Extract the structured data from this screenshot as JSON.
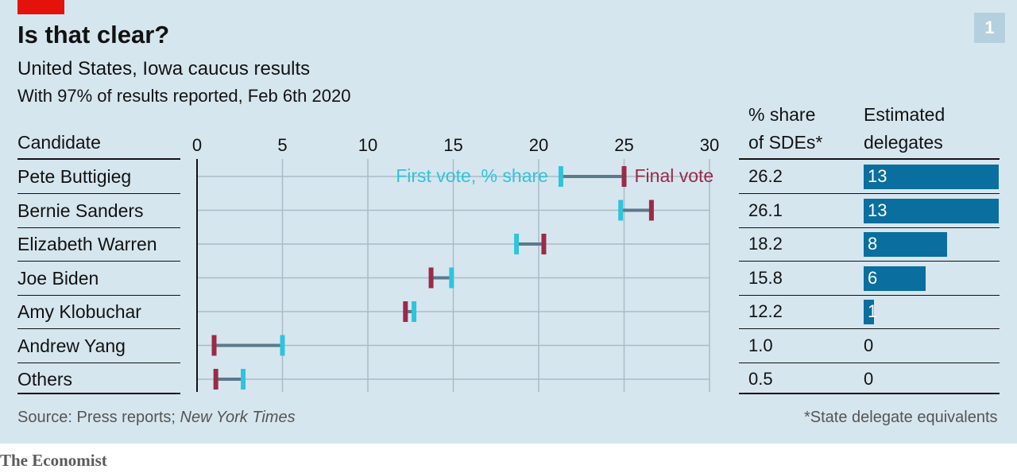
{
  "title": "Is that clear?",
  "subtitle": "United States, Iowa caucus results",
  "subsubtitle": "With 97% of results reported, Feb 6th 2020",
  "chart_number": "1",
  "headers": {
    "candidate": "Candidate",
    "sde_line1": "% share",
    "sde_line2": "of SDEs*",
    "delegates_line1": "Estimated",
    "delegates_line2": "delegates"
  },
  "annotations": {
    "first_vote": "First vote, % share",
    "final_vote": "Final vote"
  },
  "source_prefix": "Source: Press reports; ",
  "source_italic": "New York Times",
  "footnote": "*State delegate equivalents",
  "brand": "The Economist",
  "colors": {
    "first": "#2ec4dc",
    "final": "#9b2a48",
    "connector": "#5a7a8a",
    "bar": "#0a6e9e"
  },
  "chart_data": {
    "type": "dumbbell",
    "xlim": [
      0,
      30
    ],
    "ticks": [
      0,
      5,
      10,
      15,
      20,
      25,
      30
    ],
    "grid": true,
    "candidates": [
      {
        "name": "Pete Buttigieg",
        "first": 21.3,
        "final": 25.0,
        "sde": "26.2",
        "delegates": 13
      },
      {
        "name": "Bernie Sanders",
        "first": 24.8,
        "final": 26.6,
        "sde": "26.1",
        "delegates": 13
      },
      {
        "name": "Elizabeth Warren",
        "first": 18.7,
        "final": 20.3,
        "sde": "18.2",
        "delegates": 8
      },
      {
        "name": "Joe Biden",
        "first": 14.9,
        "final": 13.7,
        "sde": "15.8",
        "delegates": 6
      },
      {
        "name": "Amy Klobuchar",
        "first": 12.7,
        "final": 12.2,
        "sde": "12.2",
        "delegates": 1
      },
      {
        "name": "Andrew Yang",
        "first": 5.0,
        "final": 1.0,
        "sde": "1.0",
        "delegates": 0
      },
      {
        "name": "Others",
        "first": 2.7,
        "final": 1.1,
        "sde": "0.5",
        "delegates": 0
      }
    ]
  }
}
